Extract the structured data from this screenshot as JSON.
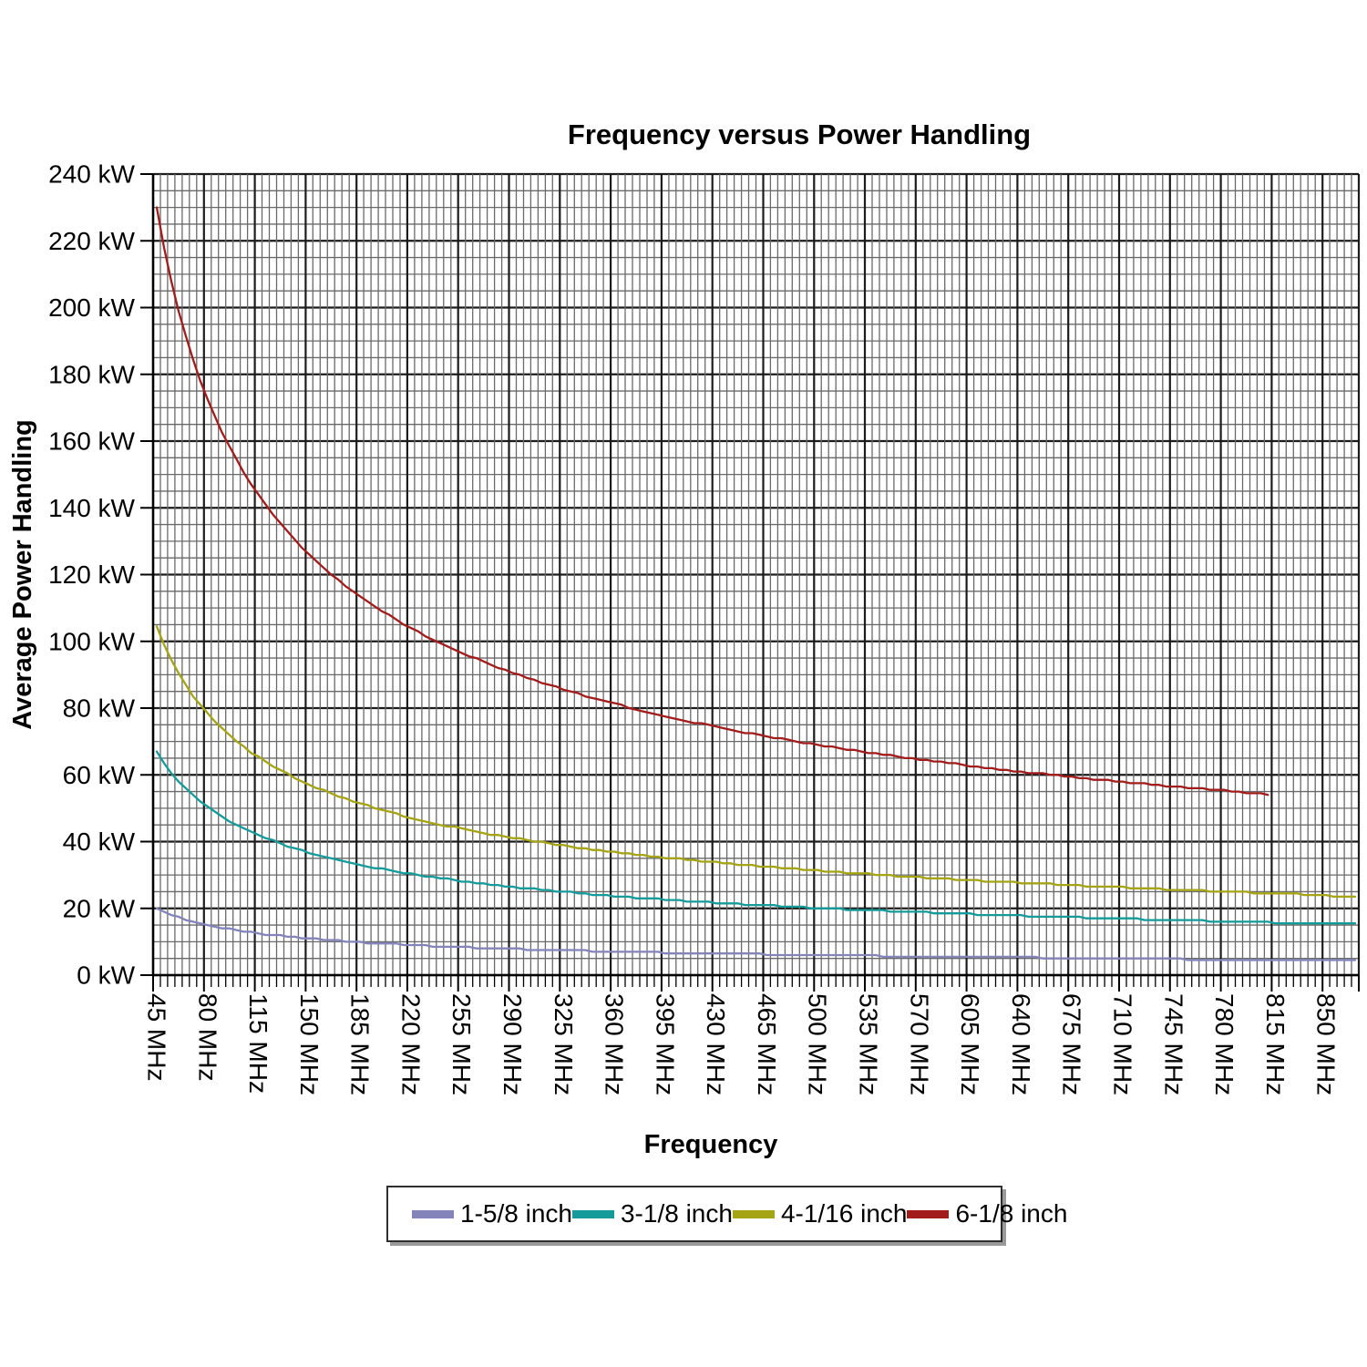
{
  "title": "Frequency versus Power Handling",
  "x_axis": {
    "title": "Frequency",
    "unit": "MHz"
  },
  "y_axis": {
    "title": "Average Power Handling",
    "unit": "kW"
  },
  "chart_data": {
    "type": "line",
    "title": "Frequency versus Power Handling",
    "xlabel": "Frequency",
    "ylabel": "Average Power Handling",
    "x_unit": "MHz",
    "y_unit": "kW",
    "x_start_mhz": 45,
    "x_step_mhz": 5,
    "x_categories_total": 166,
    "x_label_every_n": 7,
    "x_tick_labels": [
      "45 MHz",
      "80 MHz",
      "115 MHz",
      "150 MHz",
      "185 MHz",
      "220 MHz",
      "255 MHz",
      "290 MHz",
      "325 MHz",
      "360 MHz",
      "395 MHz",
      "430 MHz",
      "465 MHz",
      "500 MHz",
      "535 MHz",
      "570 MHz",
      "605 MHz",
      "640 MHz",
      "675 MHz",
      "710 MHz",
      "745 MHz",
      "780 MHz",
      "815 MHz",
      "850 MHz"
    ],
    "ylim": [
      0,
      240
    ],
    "y_major_step": 20,
    "y_minor_step": 5,
    "y_tick_labels": [
      "0 kW",
      "20 kW",
      "40 kW",
      "60 kW",
      "80 kW",
      "100 kW",
      "120 kW",
      "140 kW",
      "160 kW",
      "180 kW",
      "200 kW",
      "220 kW",
      "240 kW"
    ],
    "grid": {
      "on": true,
      "minor_color": "#6a6a6a",
      "major_color": "#1c1c1c",
      "axis_color": "#000000"
    },
    "legend_position": "bottom",
    "series": [
      {
        "name": "1-5/8 inch",
        "color": "#8484bb",
        "values": [
          20,
          19,
          18,
          17.5,
          16.5,
          16,
          15.5,
          15,
          14.5,
          14,
          14,
          13.5,
          13,
          13,
          12.5,
          12,
          12,
          12,
          11.5,
          11.5,
          11,
          11,
          11,
          10.5,
          10.5,
          10.5,
          10,
          10,
          10,
          9.5,
          9.5,
          9.5,
          9.5,
          9.5,
          9,
          9,
          9,
          9,
          8.5,
          8.5,
          8.5,
          8.5,
          8.5,
          8.5,
          8,
          8,
          8,
          8,
          8,
          8,
          8,
          7.5,
          7.5,
          7.5,
          7.5,
          7.5,
          7.5,
          7.5,
          7.5,
          7.5,
          7,
          7,
          7,
          7,
          7,
          7,
          7,
          7,
          7,
          7,
          6.5,
          6.5,
          6.5,
          6.5,
          6.5,
          6.5,
          6.5,
          6.5,
          6.5,
          6.5,
          6.5,
          6.5,
          6.5,
          6.5,
          6,
          6,
          6,
          6,
          6,
          6,
          6,
          6,
          6,
          6,
          6,
          6,
          6,
          6,
          6,
          6,
          5.5,
          5.5,
          5.5,
          5.5,
          5.5,
          5.5,
          5.5,
          5.5,
          5.5,
          5.5,
          5.5,
          5.5,
          5.5,
          5.5,
          5.5,
          5.5,
          5.5,
          5.5,
          5.5,
          5.5,
          5.5,
          5.5,
          5,
          5,
          5,
          5,
          5,
          5,
          5,
          5,
          5,
          5,
          5,
          5,
          5,
          5,
          5,
          5,
          5,
          5,
          5,
          5,
          4.5,
          4.5,
          4.5,
          4.5,
          4.5,
          4.5,
          4.5,
          4.5,
          4.5,
          4.5,
          4.5,
          4.5,
          4.5,
          4.5,
          4.5,
          4.5,
          4.5,
          4.5,
          4.5,
          4.5,
          4.5,
          4.5,
          4.5,
          4.5
        ]
      },
      {
        "name": "3-1/8 inch",
        "color": "#169b9b",
        "values": [
          67,
          63.5,
          60.5,
          58,
          56,
          54,
          52,
          50.5,
          49,
          47.5,
          46,
          45,
          44,
          43,
          42,
          41,
          40.5,
          39.5,
          38.5,
          38,
          37.5,
          36.5,
          36,
          35.5,
          35,
          34.5,
          34,
          33.5,
          33,
          32.5,
          32,
          32,
          31.5,
          31,
          30.5,
          30.5,
          30,
          29.5,
          29.5,
          29,
          29,
          28.5,
          28,
          28,
          27.5,
          27.5,
          27,
          27,
          26.5,
          26.5,
          26,
          26,
          26,
          25.5,
          25.5,
          25,
          25,
          25,
          24.5,
          24.5,
          24,
          24,
          24,
          23.5,
          23.5,
          23.5,
          23,
          23,
          23,
          23,
          22.5,
          22.5,
          22.5,
          22,
          22,
          22,
          22,
          21.5,
          21.5,
          21.5,
          21.5,
          21,
          21,
          21,
          21,
          21,
          20.5,
          20.5,
          20.5,
          20.5,
          20,
          20,
          20,
          20,
          20,
          19.5,
          19.5,
          19.5,
          19.5,
          19.5,
          19.5,
          19,
          19,
          19,
          19,
          19,
          19,
          18.5,
          18.5,
          18.5,
          18.5,
          18.5,
          18.5,
          18,
          18,
          18,
          18,
          18,
          18,
          18,
          17.5,
          17.5,
          17.5,
          17.5,
          17.5,
          17.5,
          17.5,
          17.5,
          17,
          17,
          17,
          17,
          17,
          17,
          17,
          17,
          16.5,
          16.5,
          16.5,
          16.5,
          16.5,
          16.5,
          16.5,
          16.5,
          16.5,
          16,
          16,
          16,
          16,
          16,
          16,
          16,
          16,
          16,
          15.5,
          15.5,
          15.5,
          15.5,
          15.5,
          15.5,
          15.5,
          15.5,
          15.5,
          15.5,
          15.5,
          15.5
        ]
      },
      {
        "name": "4-1/16 inch",
        "color": "#a4a414",
        "values": [
          104.5,
          99,
          94.5,
          90.5,
          87,
          83.5,
          81,
          78.5,
          76,
          74,
          72,
          70,
          68.5,
          66.5,
          65.5,
          64,
          62.5,
          61.5,
          60.5,
          59,
          58,
          57,
          56,
          55.5,
          54.5,
          53.5,
          53,
          52,
          51.5,
          51,
          50,
          49.5,
          49,
          48.5,
          47.5,
          47,
          46.5,
          46,
          45.5,
          45,
          44.5,
          44.5,
          44,
          43.5,
          43,
          42.5,
          42,
          42,
          41.5,
          41,
          41,
          40.5,
          40,
          40,
          39.5,
          39,
          39,
          38.5,
          38,
          38,
          37.5,
          37.5,
          37,
          37,
          36.5,
          36.5,
          36,
          36,
          35.5,
          35.5,
          35,
          35,
          35,
          34.5,
          34.5,
          34,
          34,
          34,
          33.5,
          33.5,
          33,
          33,
          33,
          32.5,
          32.5,
          32.5,
          32,
          32,
          32,
          31.5,
          31.5,
          31.5,
          31,
          31,
          31,
          30.5,
          30.5,
          30.5,
          30.5,
          30,
          30,
          30,
          29.5,
          29.5,
          29.5,
          29.5,
          29,
          29,
          29,
          29,
          28.5,
          28.5,
          28.5,
          28.5,
          28,
          28,
          28,
          28,
          28,
          27.5,
          27.5,
          27.5,
          27.5,
          27.5,
          27,
          27,
          27,
          27,
          26.5,
          26.5,
          26.5,
          26.5,
          26.5,
          26.5,
          26,
          26,
          26,
          26,
          26,
          25.5,
          25.5,
          25.5,
          25.5,
          25.5,
          25.5,
          25,
          25,
          25,
          25,
          25,
          25,
          24.5,
          24.5,
          24.5,
          24.5,
          24.5,
          24.5,
          24.5,
          24,
          24,
          24,
          24,
          23.5,
          23.5,
          23.5,
          23.5
        ]
      },
      {
        "name": "6-1/8 inch",
        "color": "#a21c1c",
        "values": [
          230,
          218,
          208,
          199,
          191.5,
          184.5,
          178,
          172.5,
          167.5,
          162.5,
          158.5,
          154.5,
          150.5,
          147,
          144,
          141,
          138,
          135.5,
          133,
          130.5,
          128,
          126,
          124,
          122,
          120,
          118.5,
          116.5,
          115,
          113.5,
          112,
          110.5,
          109,
          108,
          106.5,
          105,
          104,
          103,
          101.5,
          100.5,
          99.5,
          98.5,
          97.5,
          96.5,
          95.5,
          95,
          94,
          93,
          92,
          91.5,
          90.5,
          90,
          89,
          88.5,
          87.5,
          87,
          86.5,
          85.5,
          85,
          84.5,
          83.5,
          83,
          82.5,
          82,
          81.5,
          81,
          80,
          79.5,
          79,
          78.5,
          78,
          77.5,
          77,
          76.5,
          76,
          75.5,
          75.5,
          75,
          74.5,
          74,
          73.5,
          73,
          72.5,
          72.5,
          72,
          71.5,
          71,
          71,
          70.5,
          70,
          69.5,
          69.5,
          69,
          68.5,
          68.5,
          68,
          67.5,
          67.5,
          67,
          66.5,
          66.5,
          66,
          66,
          65.5,
          65,
          65,
          64.5,
          64.5,
          64,
          64,
          63.5,
          63.5,
          63,
          62.5,
          62.5,
          62,
          62,
          61.5,
          61.5,
          61,
          61,
          60.5,
          60.5,
          60.5,
          60,
          60,
          59.5,
          59.5,
          59,
          59,
          58.5,
          58.5,
          58.5,
          58,
          58,
          57.5,
          57.5,
          57.5,
          57,
          57,
          56.5,
          56.5,
          56.5,
          56,
          56,
          56,
          55.5,
          55.5,
          55.5,
          55,
          55,
          54.5,
          54.5,
          54.5,
          54
        ]
      }
    ]
  }
}
